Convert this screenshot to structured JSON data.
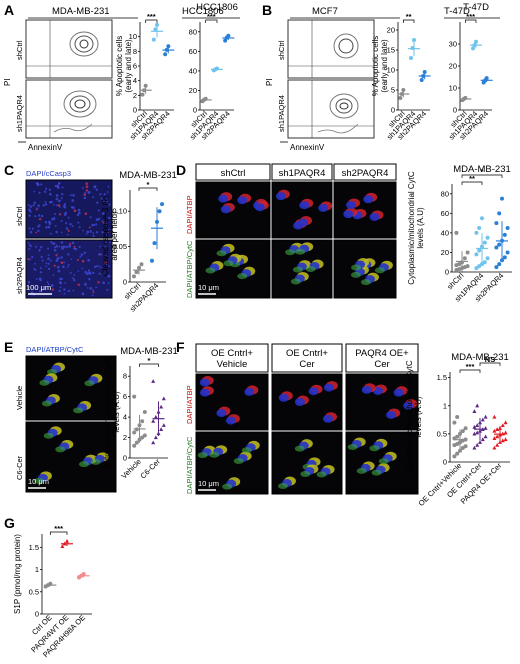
{
  "panels": {
    "A": {
      "label": "A",
      "flow_title": "MDA-MB-231",
      "flow_rows": [
        "shCtrl",
        "sh1PAQR4"
      ],
      "flow_xlabel": "AnnexinV",
      "flow_ylabel": "PI",
      "plot2_title": "HCC1806"
    },
    "B": {
      "label": "B",
      "flow_title": "MCF7",
      "flow_rows": [
        "shCtrl",
        "sh1PAQR4"
      ],
      "flow_xlabel": "AnnexinV",
      "flow_ylabel": "PI",
      "plot2_title": "T-47D"
    },
    "C": {
      "label": "C",
      "stain": "DAPI/cCasp3",
      "rows": [
        "shCtrl",
        "sh2PAQR4"
      ],
      "scale": "100 μm",
      "plot_title": "MDA-MB-231"
    },
    "D": {
      "label": "D",
      "cols": [
        "shCtrl",
        "sh1PAQR4",
        "sh2PAQR4"
      ],
      "rows": [
        "DAPI/ATBP",
        "DAPI/ATBP/CytC"
      ],
      "scale": "10 μm",
      "plot_title": "MDA-MB-231"
    },
    "E": {
      "label": "E",
      "stain": "DAPI/ATBP/CytC",
      "rows": [
        "Vehicle",
        "C6-Cer"
      ],
      "scale": "10 μm",
      "plot_title": "MDA-MB-231"
    },
    "F": {
      "label": "F",
      "cols": [
        "OE Cntrl+ Vehicle",
        "OE Cntrl+ Cer",
        "PAQR4 OE+ Cer"
      ],
      "rows": [
        "DAPI/ATBP",
        "DAPI/ATBP/CytC"
      ],
      "scale": "10 μm",
      "plot_title": "MDA-MB-231"
    },
    "G": {
      "label": "G"
    }
  },
  "colors": {
    "gray": "#8c8c8c",
    "lightblue": "#6fc3ec",
    "blue": "#2b7fd6",
    "purple": "#5c2a86",
    "red": "#e21b23",
    "pink": "#f28b8e"
  },
  "chart_data": [
    {
      "id": "A1",
      "type": "scatter",
      "title": "",
      "ylabel": "% Apoptotic cells (early and late)",
      "categories": [
        "shCtrl",
        "sh1PAQR4",
        "sh2PAQR4"
      ],
      "ylim": [
        0,
        12
      ],
      "yticks": [
        0,
        2,
        4,
        6,
        8,
        10
      ],
      "points": [
        [
          2.1,
          2.7,
          3.3
        ],
        [
          9.6,
          11.0,
          11.6
        ],
        [
          7.6,
          8.2,
          8.7
        ]
      ],
      "colors": [
        "#8c8c8c",
        "#6fc3ec",
        "#2b7fd6"
      ],
      "sig": [
        {
          "from": 0,
          "to": 1,
          "label": "***"
        }
      ]
    },
    {
      "id": "A2",
      "type": "scatter",
      "title": "HCC1806",
      "ylabel": "",
      "categories": [
        "shCtrl",
        "sh1PAQR4",
        "sh2PAQR4"
      ],
      "ylim": [
        0,
        90
      ],
      "yticks": [
        0,
        20,
        40,
        60,
        80
      ],
      "points": [
        [
          9.0,
          10.5,
          11.5
        ],
        [
          40.5,
          41.5,
          42.5
        ],
        [
          71.0,
          74.0,
          76.0
        ]
      ],
      "colors": [
        "#8c8c8c",
        "#6fc3ec",
        "#2b7fd6"
      ],
      "sig": [
        {
          "from": 0,
          "to": 1,
          "label": "***"
        }
      ]
    },
    {
      "id": "B1",
      "type": "scatter",
      "title": "",
      "ylabel": "% Apoptotic cells (early and late)",
      "categories": [
        "shCtrl",
        "sh1PAQR4",
        "sh2PAQR4"
      ],
      "ylim": [
        0,
        22
      ],
      "yticks": [
        0,
        5,
        10,
        15,
        20
      ],
      "points": [
        [
          3.0,
          4.0,
          5.0
        ],
        [
          13.0,
          15.5,
          17.5
        ],
        [
          7.5,
          8.5,
          9.5
        ]
      ],
      "colors": [
        "#8c8c8c",
        "#6fc3ec",
        "#2b7fd6"
      ],
      "sig": [
        {
          "from": 0,
          "to": 1,
          "label": "**"
        }
      ]
    },
    {
      "id": "B2",
      "type": "scatter",
      "title": "T-47D",
      "ylabel": "",
      "categories": [
        "shCtrl",
        "sh1PAQR4",
        "sh2PAQR4"
      ],
      "ylim": [
        0,
        40
      ],
      "yticks": [
        0,
        10,
        20,
        30
      ],
      "points": [
        [
          4.5,
          5.0,
          5.5
        ],
        [
          28.0,
          29.5,
          31.0
        ],
        [
          12.5,
          13.5,
          14.5
        ]
      ],
      "colors": [
        "#8c8c8c",
        "#6fc3ec",
        "#2b7fd6"
      ],
      "sig": [
        {
          "from": 0,
          "to": 1,
          "label": "***"
        }
      ]
    },
    {
      "id": "C",
      "type": "scatter",
      "title": "MDA-MB-231",
      "ylabel": "Cleaved caspase-3 (% area per field)",
      "categories": [
        "shCtrl",
        "sh2PAQR4"
      ],
      "ylim": [
        0,
        0.13
      ],
      "yticks": [
        0,
        0.05,
        0.1
      ],
      "ytick_labels": [
        "0",
        "0.05",
        "0.10"
      ],
      "points": [
        [
          0.008,
          0.014,
          0.02,
          0.025
        ],
        [
          0.03,
          0.055,
          0.085,
          0.1,
          0.11
        ]
      ],
      "colors": [
        "#8c8c8c",
        "#2b7fd6"
      ],
      "sig": [
        {
          "from": 0,
          "to": 1,
          "label": "*"
        }
      ]
    },
    {
      "id": "D",
      "type": "scatter",
      "title": "MDA-MB-231",
      "ylabel": "Cytoplasmic/mitochondrial CytC levels (A.U)",
      "categories": [
        "shCtrl",
        "sh1PAQR4",
        "sh2PAQR4"
      ],
      "ylim": [
        0,
        90
      ],
      "yticks": [
        0,
        20,
        40,
        60,
        80
      ],
      "points": [
        [
          2,
          3,
          4,
          5,
          6,
          7,
          8,
          10,
          14,
          20,
          40
        ],
        [
          4,
          6,
          8,
          10,
          14,
          18,
          22,
          26,
          30,
          35,
          40,
          45,
          55
        ],
        [
          5,
          8,
          12,
          15,
          20,
          25,
          28,
          32,
          38,
          45,
          50,
          60,
          75
        ]
      ],
      "colors": [
        "#8c8c8c",
        "#6fc3ec",
        "#2b7fd6"
      ],
      "sig": [
        {
          "from": 0,
          "to": 1,
          "label": "**"
        },
        {
          "from": 0,
          "to": 2,
          "label": "*"
        }
      ]
    },
    {
      "id": "E",
      "type": "scatter",
      "title": "MDA-MB-231",
      "ylabel": "Cytoplasmic/mitochondrial CytC levels (A.U)",
      "categories": [
        "Vehicle",
        "C6-Cer"
      ],
      "ylim": [
        0,
        9
      ],
      "yticks": [
        0,
        2,
        4,
        6,
        8
      ],
      "points": [
        [
          1.2,
          1.5,
          1.8,
          2.0,
          2.2,
          2.5,
          2.8,
          3.2,
          3.6,
          4.5,
          6.0
        ],
        [
          1.5,
          2.0,
          2.4,
          2.8,
          3.2,
          3.6,
          4.0,
          4.5,
          5.0,
          5.8,
          7.5
        ]
      ],
      "colors": [
        "#8c8c8c",
        "#5c2a86"
      ],
      "sig": [
        {
          "from": 0,
          "to": 1,
          "label": "*"
        }
      ]
    },
    {
      "id": "F",
      "type": "scatter",
      "title": "MDA-MB-231",
      "ylabel": "Cytoplasmic/mitochondrial CytC levels (A.U)",
      "categories": [
        "OE Cntrl+Vehicle",
        "OE Cntrl+Cer",
        "PAQR4 OE+Cer"
      ],
      "ylim": [
        0,
        1.6
      ],
      "yticks": [
        0,
        0.5,
        1.0,
        1.5
      ],
      "points": [
        [
          0.1,
          0.15,
          0.2,
          0.25,
          0.28,
          0.3,
          0.32,
          0.35,
          0.38,
          0.4,
          0.42,
          0.45,
          0.5,
          0.55,
          0.6,
          0.7,
          0.8
        ],
        [
          0.25,
          0.3,
          0.35,
          0.4,
          0.45,
          0.5,
          0.52,
          0.55,
          0.58,
          0.6,
          0.62,
          0.65,
          0.7,
          0.75,
          0.8,
          0.9,
          1.0
        ],
        [
          0.25,
          0.3,
          0.35,
          0.38,
          0.4,
          0.42,
          0.45,
          0.48,
          0.5,
          0.52,
          0.55,
          0.58,
          0.6,
          0.65,
          0.7,
          0.8
        ]
      ],
      "colors": [
        "#8c8c8c",
        "#5c2a86",
        "#e21b23"
      ],
      "sig": [
        {
          "from": 0,
          "to": 1,
          "label": "***"
        },
        {
          "from": 1,
          "to": 2,
          "label": "NS"
        }
      ]
    },
    {
      "id": "G",
      "type": "scatter",
      "title": "",
      "ylabel": "S1P (pmol/mg protein)",
      "categories": [
        "Ctrl OE",
        "PAQR4WT OE",
        "PAQR4H98A OE"
      ],
      "ylim": [
        0,
        1.8
      ],
      "yticks": [
        0,
        0.5,
        1.0,
        1.5
      ],
      "points": [
        [
          0.62,
          0.65,
          0.68
        ],
        [
          1.52,
          1.58,
          1.64
        ],
        [
          0.82,
          0.86,
          0.9
        ]
      ],
      "colors": [
        "#8c8c8c",
        "#e21b23",
        "#f28b8e"
      ],
      "sig": [
        {
          "from": 0,
          "to": 1,
          "label": "***"
        }
      ]
    }
  ]
}
